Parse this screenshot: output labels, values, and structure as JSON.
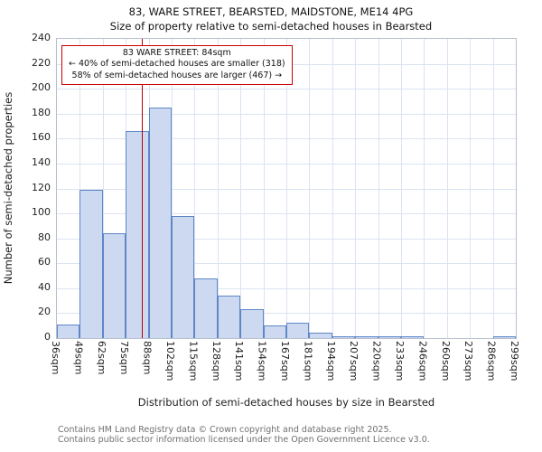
{
  "title": "83, WARE STREET, BEARSTED, MAIDSTONE, ME14 4PG",
  "subtitle": "Size of property relative to semi-detached houses in Bearsted",
  "annotation": {
    "line1": "83 WARE STREET: 84sqm",
    "line2": "← 40% of semi-detached houses are smaller (318)",
    "line3": "58% of semi-detached houses are larger (467) →"
  },
  "footer": {
    "line1": "Contains HM Land Registry data © Crown copyright and database right 2025.",
    "line2": "Contains public sector information licensed under the Open Government Licence v3.0."
  },
  "chart_data": {
    "type": "bar",
    "title": "83, WARE STREET, BEARSTED, MAIDSTONE, ME14 4PG",
    "subtitle": "Size of property relative to semi-detached houses in Bearsted",
    "xlabel": "Distribution of semi-detached houses by size in Bearsted",
    "ylabel": "Number of semi-detached properties",
    "ylim": [
      0,
      240
    ],
    "yticks": [
      0,
      20,
      40,
      60,
      80,
      100,
      120,
      140,
      160,
      180,
      200,
      220,
      240
    ],
    "bin_edge_labels": [
      "36sqm",
      "49sqm",
      "62sqm",
      "75sqm",
      "88sqm",
      "102sqm",
      "115sqm",
      "128sqm",
      "141sqm",
      "154sqm",
      "167sqm",
      "181sqm",
      "194sqm",
      "207sqm",
      "220sqm",
      "233sqm",
      "246sqm",
      "260sqm",
      "273sqm",
      "286sqm",
      "299sqm"
    ],
    "values": [
      11,
      119,
      84,
      166,
      185,
      98,
      48,
      34,
      23,
      10,
      12,
      4,
      1,
      1,
      1,
      1,
      0,
      0,
      0,
      1
    ],
    "marker": {
      "label": "84sqm",
      "value_sqm": 84,
      "smaller_count": 318,
      "smaller_pct": 40,
      "larger_count": 467,
      "larger_pct": 58
    },
    "grid": true,
    "colors": {
      "bar_fill": "#ccd9f1",
      "bar_border": "#5f87c7",
      "marker_line": "#b30000",
      "grid_line": "#dbe3f1",
      "annotation_border": "#cc0000"
    }
  }
}
